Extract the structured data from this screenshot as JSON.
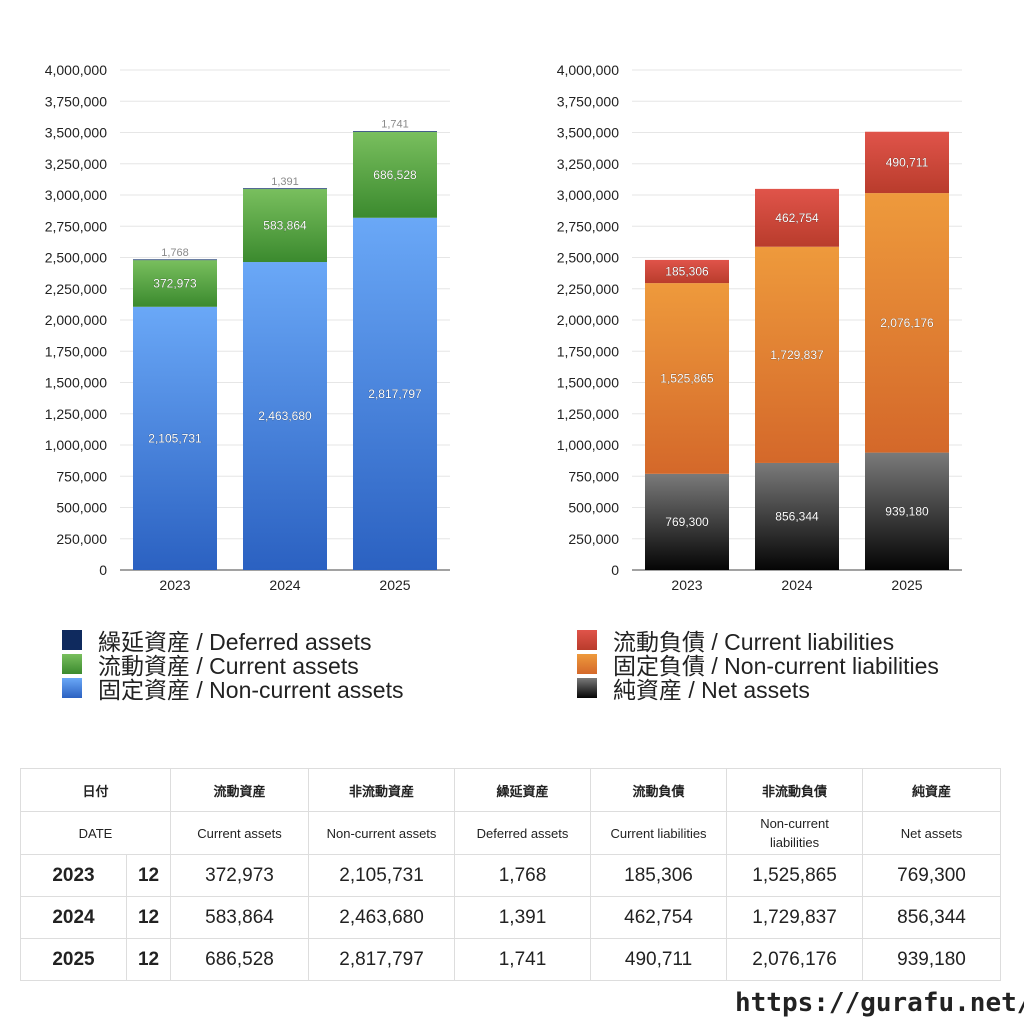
{
  "chart_data": [
    {
      "type": "bar",
      "stacked": true,
      "categories": [
        "2023",
        "2024",
        "2025"
      ],
      "ylim": [
        0,
        4000000
      ],
      "yticks": [
        0,
        250000,
        500000,
        750000,
        1000000,
        1250000,
        1500000,
        1750000,
        2000000,
        2250000,
        2500000,
        2750000,
        3000000,
        3250000,
        3500000,
        3750000,
        4000000
      ],
      "ytick_labels": [
        "0",
        "250,000",
        "500,000",
        "750,000",
        "1,000,000",
        "1,250,000",
        "1,500,000",
        "1,750,000",
        "2,000,000",
        "2,250,000",
        "2,500,000",
        "2,750,000",
        "3,000,000",
        "3,250,000",
        "3,500,000",
        "3,750,000",
        "4,000,000"
      ],
      "grid": true,
      "legend_position": "bottom",
      "series": [
        {
          "name": "固定資産 / Non-current assets",
          "values": [
            2105731,
            2463680,
            2817797
          ],
          "labels": [
            "2,105,731",
            "2,463,680",
            "2,817,797"
          ],
          "color_top": "#6aa8f7",
          "color_bottom": "#2b61c1"
        },
        {
          "name": "流動資産 / Current assets",
          "values": [
            372973,
            583864,
            686528
          ],
          "labels": [
            "372,973",
            "583,864",
            "686,528"
          ],
          "color_top": "#79bf5e",
          "color_bottom": "#3b8a2e"
        },
        {
          "name": "繰延資産 / Deferred assets",
          "values": [
            1768,
            1391,
            1741
          ],
          "labels": [
            "1,768",
            "1,391",
            "1,741"
          ],
          "color_top": "#1f3f7a",
          "color_bottom": "#0f2a5e",
          "label_on_top": true
        }
      ]
    },
    {
      "type": "bar",
      "stacked": true,
      "categories": [
        "2023",
        "2024",
        "2025"
      ],
      "ylim": [
        0,
        4000000
      ],
      "yticks": [
        0,
        250000,
        500000,
        750000,
        1000000,
        1250000,
        1500000,
        1750000,
        2000000,
        2250000,
        2500000,
        2750000,
        3000000,
        3250000,
        3500000,
        3750000,
        4000000
      ],
      "ytick_labels": [
        "0",
        "250,000",
        "500,000",
        "750,000",
        "1,000,000",
        "1,250,000",
        "1,500,000",
        "1,750,000",
        "2,000,000",
        "2,250,000",
        "2,500,000",
        "2,750,000",
        "3,000,000",
        "3,250,000",
        "3,500,000",
        "3,750,000",
        "4,000,000"
      ],
      "grid": true,
      "legend_position": "bottom",
      "series": [
        {
          "name": "純資産 / Net assets",
          "values": [
            769300,
            856344,
            939180
          ],
          "labels": [
            "769,300",
            "856,344",
            "939,180"
          ],
          "color_top": "#7a7a7a",
          "color_bottom": "#050505"
        },
        {
          "name": "固定負債 / Non-current liabilities",
          "values": [
            1525865,
            1729837,
            2076176
          ],
          "labels": [
            "1,525,865",
            "1,729,837",
            "2,076,176"
          ],
          "color_top": "#ee9a3c",
          "color_bottom": "#d4682a"
        },
        {
          "name": "流動負債 / Current liabilities",
          "values": [
            185306,
            462754,
            490711
          ],
          "labels": [
            "185,306",
            "462,754",
            "490,711"
          ],
          "color_top": "#e0544a",
          "color_bottom": "#b93c2c"
        }
      ]
    }
  ],
  "legend_left": [
    {
      "label": "繰延資産 / Deferred assets",
      "color": "#0f2a5e"
    },
    {
      "label": "流動資産 / Current assets",
      "color": "#4e9e3a"
    },
    {
      "label": "固定資産 / Non-current assets",
      "color": "#4f8ee6"
    }
  ],
  "legend_right": [
    {
      "label": "流動負債 / Current liabilities",
      "color": "#cf4a3c"
    },
    {
      "label": "固定負債 / Non-current liabilities",
      "color": "#e58a36"
    },
    {
      "label": "純資産 / Net assets",
      "color": "#2a2a2a"
    }
  ],
  "table": {
    "header_jp": [
      "日付",
      "流動資産",
      "非流動資産",
      "繰延資産",
      "流動負債",
      "非流動負債",
      "純資産"
    ],
    "header_en": [
      "DATE",
      "Current assets",
      "Non-current assets",
      "Deferred assets",
      "Current liabilities",
      "Non-current liabilities",
      "Net assets"
    ],
    "rows": [
      {
        "year": "2023",
        "month": "12",
        "cells": [
          "372,973",
          "2,105,731",
          "1,768",
          "185,306",
          "1,525,865",
          "769,300"
        ]
      },
      {
        "year": "2024",
        "month": "12",
        "cells": [
          "583,864",
          "2,463,680",
          "1,391",
          "462,754",
          "1,729,837",
          "856,344"
        ]
      },
      {
        "year": "2025",
        "month": "12",
        "cells": [
          "686,528",
          "2,817,797",
          "1,741",
          "490,711",
          "2,076,176",
          "939,180"
        ]
      }
    ]
  },
  "site_url": "https://gurafu.net/"
}
